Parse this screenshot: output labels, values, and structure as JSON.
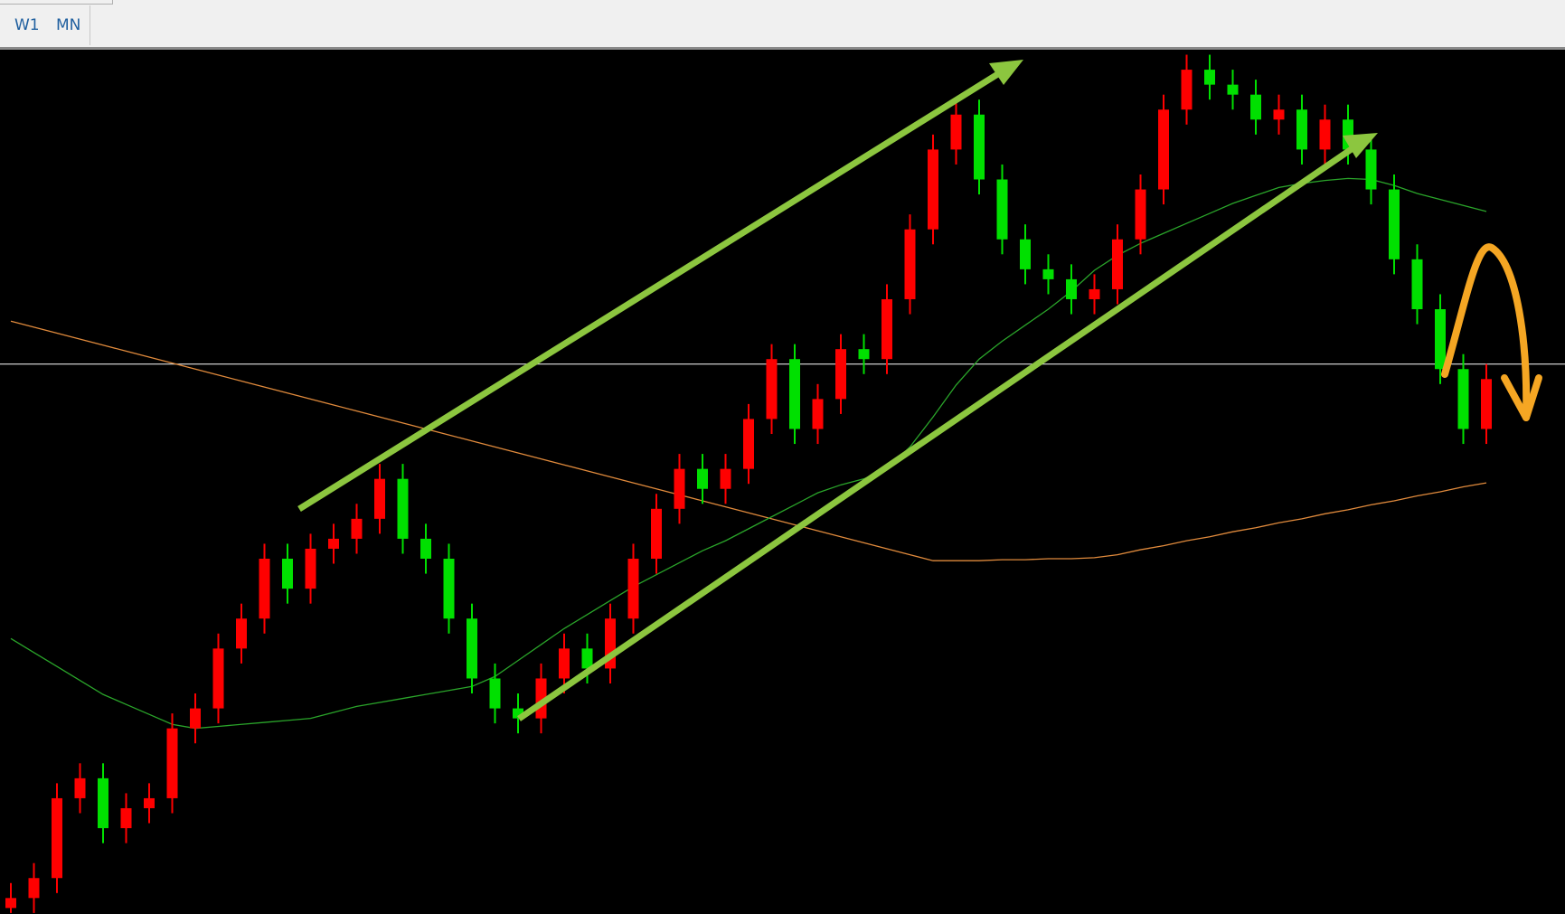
{
  "toolbar": {
    "tabs": [
      "W1",
      "MN"
    ]
  },
  "chart_data": {
    "type": "candlestick",
    "ylim": [
      0,
      866
    ],
    "up_color": "#ff0000",
    "down_color": "#00e000",
    "open": [
      6,
      16,
      36,
      116,
      136,
      86,
      106,
      116,
      186,
      206,
      266,
      296,
      356,
      326,
      366,
      376,
      396,
      436,
      376,
      356,
      296,
      236,
      206,
      196,
      236,
      266,
      246,
      296,
      356,
      406,
      446,
      426,
      446,
      496,
      556,
      486,
      516,
      566,
      556,
      616,
      686,
      766,
      801,
      736,
      676,
      646,
      636,
      616,
      626,
      676,
      726,
      806,
      846,
      831,
      821,
      796,
      806,
      766,
      796,
      766,
      726,
      656,
      606,
      546,
      486
    ],
    "high": [
      31,
      51,
      131,
      151,
      151,
      121,
      131,
      201,
      221,
      281,
      311,
      371,
      371,
      381,
      391,
      411,
      451,
      451,
      391,
      371,
      311,
      251,
      221,
      251,
      281,
      281,
      311,
      371,
      421,
      461,
      461,
      461,
      511,
      571,
      571,
      531,
      581,
      581,
      631,
      701,
      781,
      816,
      816,
      751,
      691,
      661,
      651,
      641,
      691,
      741,
      821,
      861,
      861,
      846,
      836,
      821,
      821,
      811,
      811,
      781,
      741,
      671,
      621,
      561,
      551
    ],
    "low": [
      1,
      1,
      21,
      101,
      71,
      71,
      91,
      101,
      171,
      191,
      251,
      281,
      311,
      311,
      351,
      361,
      381,
      361,
      341,
      281,
      221,
      191,
      181,
      181,
      221,
      231,
      231,
      281,
      341,
      391,
      411,
      411,
      431,
      481,
      471,
      471,
      501,
      541,
      541,
      601,
      671,
      751,
      721,
      661,
      631,
      621,
      601,
      601,
      611,
      661,
      711,
      791,
      816,
      806,
      781,
      781,
      751,
      751,
      751,
      711,
      641,
      591,
      531,
      471,
      471
    ],
    "close": [
      16,
      36,
      116,
      136,
      86,
      106,
      116,
      186,
      206,
      266,
      296,
      356,
      326,
      366,
      376,
      396,
      436,
      376,
      356,
      296,
      236,
      206,
      196,
      236,
      266,
      246,
      296,
      356,
      406,
      446,
      426,
      446,
      496,
      556,
      486,
      516,
      566,
      556,
      616,
      686,
      766,
      801,
      736,
      676,
      646,
      636,
      616,
      626,
      676,
      726,
      806,
      846,
      831,
      821,
      796,
      806,
      766,
      796,
      766,
      726,
      656,
      606,
      546,
      486,
      536
    ],
    "lines": [
      {
        "color": "#e08a3c",
        "values": [
          594,
          588,
          582,
          576,
          570,
          564,
          558,
          552,
          546,
          540,
          534,
          528,
          522,
          516,
          510,
          504,
          498,
          492,
          486,
          480,
          474,
          468,
          462,
          456,
          450,
          444,
          438,
          432,
          426,
          420,
          414,
          408,
          402,
          396,
          390,
          384,
          378,
          372,
          366,
          360,
          354,
          354,
          354,
          355,
          355,
          356,
          356,
          357,
          360,
          365,
          369,
          374,
          378,
          383,
          387,
          392,
          396,
          401,
          405,
          410,
          414,
          419,
          423,
          428,
          432
        ]
      },
      {
        "color": "#2aa52a",
        "values": [
          276,
          262,
          248,
          234,
          220,
          210,
          200,
          190,
          186,
          188,
          190,
          192,
          194,
          196,
          202,
          208,
          212,
          216,
          220,
          224,
          228,
          238,
          254,
          270,
          286,
          300,
          314,
          328,
          340,
          352,
          364,
          374,
          386,
          398,
          410,
          422,
          430,
          436,
          446,
          468,
          498,
          530,
          556,
          574,
          590,
          606,
          624,
          645,
          660,
          672,
          682,
          692,
          702,
          712,
          720,
          728,
          732,
          735,
          737,
          736,
          730,
          722,
          716,
          710,
          704
        ]
      }
    ],
    "level": 551,
    "level_color": "#ffffff"
  }
}
